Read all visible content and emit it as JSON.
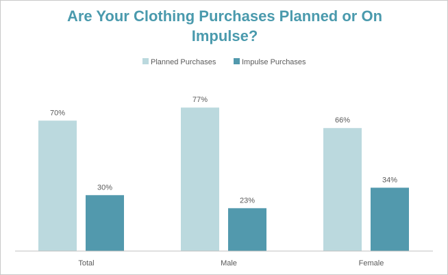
{
  "chart_data": {
    "type": "bar",
    "title_lines": [
      "Are Your Clothing Purchases Planned or On",
      "Impulse?"
    ],
    "categories": [
      "Total",
      "Male",
      "Female"
    ],
    "series": [
      {
        "name": "Planned Purchases",
        "values": [
          70,
          77,
          66
        ],
        "labels": [
          "70%",
          "77%",
          "66%"
        ],
        "color": "#bbd9de"
      },
      {
        "name": "Impulse Purchases",
        "values": [
          30,
          23,
          34
        ],
        "labels": [
          "30%",
          "23%",
          "34%"
        ],
        "color": "#5299ad"
      }
    ],
    "ylim": [
      0,
      87
    ],
    "grid": false,
    "legend_position": "top-center",
    "title_color": "#4a9aad",
    "axis_color": "#bfbfbf",
    "text_color": "#595959"
  }
}
